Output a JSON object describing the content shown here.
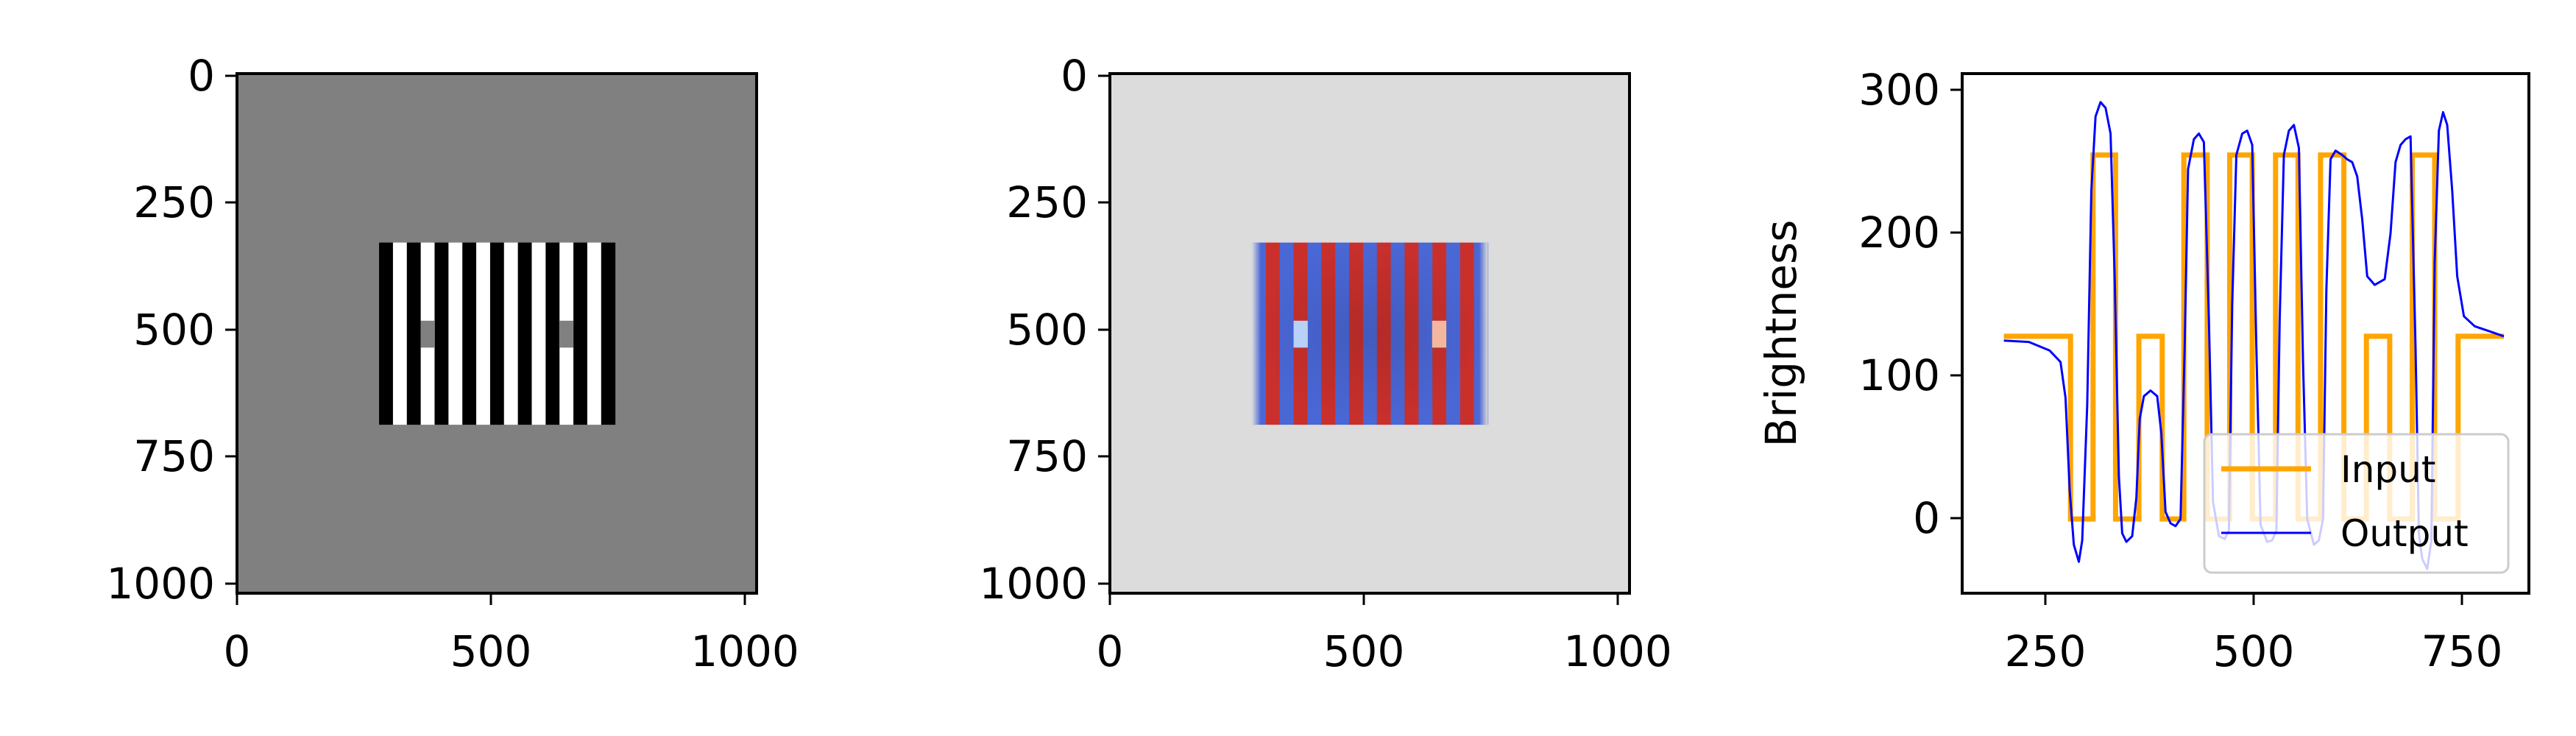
{
  "colors": {
    "background": "#ffffff",
    "axes": "#000000",
    "panel1_background": "#808080",
    "panel1_black": "#000000",
    "panel1_white": "#ffffff",
    "panel1_gray": "#808080",
    "panel2_background": "#dcdcdc",
    "panel2_red": "#c9302c",
    "panel2_blue": "#4a67d6",
    "panel2_light_red": "#f3b7a0",
    "panel2_light_blue": "#b9d0f7",
    "input_color": "#ffa500",
    "output_color": "#0000ff"
  },
  "chart_data": [
    {
      "type": "heatmap",
      "xlim": [
        0,
        1024
      ],
      "ylim": [
        1024,
        0
      ],
      "xticks": [
        "0",
        "500",
        "1000"
      ],
      "xtick_values": [
        0,
        500,
        1000
      ],
      "yticks": [
        "0",
        "250",
        "500",
        "750",
        "1000"
      ],
      "ytick_values": [
        0,
        250,
        500,
        750,
        1000
      ],
      "grid": false,
      "background_value": 128,
      "grating": {
        "x_start": 280,
        "x_end": 745,
        "y_start": 333,
        "y_end": 692,
        "stripe_width": 27.35,
        "stripes": 17,
        "first_stripe": "black"
      },
      "test_patches": [
        {
          "x_start": 362,
          "x_end": 390,
          "y_start": 487,
          "y_end": 540,
          "value": 128
        },
        {
          "x_start": 635,
          "x_end": 663,
          "y_start": 487,
          "y_end": 540,
          "value": 128
        }
      ]
    },
    {
      "type": "heatmap",
      "colormap": "coolwarm",
      "xlim": [
        0,
        1024
      ],
      "ylim": [
        1024,
        0
      ],
      "xticks": [
        "0",
        "500",
        "1000"
      ],
      "xtick_values": [
        0,
        500,
        1000
      ],
      "yticks": [
        "0",
        "250",
        "500",
        "750",
        "1000"
      ],
      "ytick_values": [
        0,
        250,
        500,
        750,
        1000
      ],
      "grid": false,
      "grating": {
        "x_start": 280,
        "x_end": 745,
        "y_start": 333,
        "y_end": 692,
        "stripes": 17,
        "first_stripe": "blue"
      },
      "test_patches": [
        {
          "x_start": 362,
          "x_end": 390,
          "y_start": 487,
          "y_end": 540,
          "tone": "light-blue"
        },
        {
          "x_start": 635,
          "x_end": 663,
          "y_start": 487,
          "y_end": 540,
          "tone": "light-red"
        }
      ]
    },
    {
      "type": "line",
      "ylabel": "Brightness",
      "xlabel": "",
      "xlim": [
        150,
        830
      ],
      "ylim": [
        -52,
        312
      ],
      "xticks": [
        "250",
        "500",
        "750"
      ],
      "xtick_values": [
        250,
        500,
        750
      ],
      "yticks": [
        "0",
        "100",
        "200",
        "300"
      ],
      "ytick_values": [
        0,
        100,
        200,
        300
      ],
      "grid": false,
      "legend_position": "lower-right",
      "series": [
        {
          "name": "Input",
          "points": [
            [
              200,
              128
            ],
            [
              280,
              128
            ],
            [
              280,
              0
            ],
            [
              307,
              0
            ],
            [
              307,
              255
            ],
            [
              334,
              255
            ],
            [
              334,
              0
            ],
            [
              362,
              0
            ],
            [
              362,
              128
            ],
            [
              390,
              128
            ],
            [
              390,
              0
            ],
            [
              416,
              0
            ],
            [
              416,
              255
            ],
            [
              444,
              255
            ],
            [
              444,
              0
            ],
            [
              471,
              0
            ],
            [
              471,
              255
            ],
            [
              498,
              255
            ],
            [
              498,
              0
            ],
            [
              526,
              0
            ],
            [
              526,
              255
            ],
            [
              553,
              255
            ],
            [
              553,
              0
            ],
            [
              580,
              0
            ],
            [
              580,
              255
            ],
            [
              608,
              255
            ],
            [
              608,
              0
            ],
            [
              635,
              0
            ],
            [
              635,
              128
            ],
            [
              663,
              128
            ],
            [
              663,
              0
            ],
            [
              690,
              0
            ],
            [
              690,
              255
            ],
            [
              717,
              255
            ],
            [
              717,
              0
            ],
            [
              745,
              0
            ],
            [
              745,
              128
            ],
            [
              800,
              128
            ]
          ]
        },
        {
          "name": "Output",
          "points": [
            [
              200,
              125
            ],
            [
              230,
              124
            ],
            [
              255,
              118
            ],
            [
              268,
              110
            ],
            [
              274,
              85
            ],
            [
              279,
              20
            ],
            [
              284,
              -18
            ],
            [
              290,
              -30
            ],
            [
              294,
              -15
            ],
            [
              300,
              80
            ],
            [
              305,
              230
            ],
            [
              310,
              282
            ],
            [
              316,
              292
            ],
            [
              322,
              288
            ],
            [
              328,
              270
            ],
            [
              333,
              170
            ],
            [
              338,
              30
            ],
            [
              342,
              -10
            ],
            [
              347,
              -16
            ],
            [
              354,
              -12
            ],
            [
              359,
              15
            ],
            [
              363,
              70
            ],
            [
              368,
              86
            ],
            [
              376,
              90
            ],
            [
              384,
              86
            ],
            [
              389,
              60
            ],
            [
              394,
              5
            ],
            [
              400,
              -3
            ],
            [
              406,
              -5
            ],
            [
              412,
              0
            ],
            [
              417,
              120
            ],
            [
              421,
              245
            ],
            [
              428,
              266
            ],
            [
              434,
              270
            ],
            [
              440,
              264
            ],
            [
              446,
              140
            ],
            [
              451,
              12
            ],
            [
              458,
              -12
            ],
            [
              465,
              -14
            ],
            [
              470,
              -8
            ],
            [
              474,
              150
            ],
            [
              479,
              255
            ],
            [
              486,
              270
            ],
            [
              492,
              272
            ],
            [
              498,
              262
            ],
            [
              503,
              120
            ],
            [
              508,
              -4
            ],
            [
              516,
              -16
            ],
            [
              522,
              -15
            ],
            [
              527,
              -8
            ],
            [
              531,
              140
            ],
            [
              536,
              255
            ],
            [
              542,
              272
            ],
            [
              548,
              276
            ],
            [
              554,
              260
            ],
            [
              559,
              110
            ],
            [
              564,
              0
            ],
            [
              572,
              -18
            ],
            [
              578,
              -15
            ],
            [
              583,
              0
            ],
            [
              587,
              160
            ],
            [
              592,
              252
            ],
            [
              598,
              258
            ],
            [
              606,
              255
            ],
            [
              612,
              252
            ],
            [
              618,
              250
            ],
            [
              624,
              240
            ],
            [
              630,
              210
            ],
            [
              636,
              170
            ],
            [
              645,
              164
            ],
            [
              657,
              168
            ],
            [
              664,
              200
            ],
            [
              670,
              250
            ],
            [
              676,
              262
            ],
            [
              682,
              266
            ],
            [
              688,
              268
            ],
            [
              694,
              120
            ],
            [
              698,
              -10
            ],
            [
              702,
              -28
            ],
            [
              708,
              -35
            ],
            [
              713,
              -15
            ],
            [
              717,
              180
            ],
            [
              722,
              272
            ],
            [
              727,
              285
            ],
            [
              732,
              276
            ],
            [
              738,
              230
            ],
            [
              744,
              170
            ],
            [
              752,
              142
            ],
            [
              765,
              135
            ],
            [
              780,
              132
            ],
            [
              800,
              128
            ]
          ]
        }
      ]
    }
  ],
  "legend": {
    "input_label": "Input",
    "output_label": "Output"
  },
  "panel1": {
    "xtick_0": "0",
    "xtick_1": "500",
    "xtick_2": "1000",
    "ytick_0": "0",
    "ytick_1": "250",
    "ytick_2": "500",
    "ytick_3": "750",
    "ytick_4": "1000"
  },
  "panel2": {
    "xtick_0": "0",
    "xtick_1": "500",
    "xtick_2": "1000",
    "ytick_0": "0",
    "ytick_1": "250",
    "ytick_2": "500",
    "ytick_3": "750",
    "ytick_4": "1000"
  },
  "panel3": {
    "ylabel": "Brightness",
    "xtick_0": "250",
    "xtick_1": "500",
    "xtick_2": "750",
    "ytick_0": "0",
    "ytick_1": "100",
    "ytick_2": "200",
    "ytick_3": "300"
  }
}
